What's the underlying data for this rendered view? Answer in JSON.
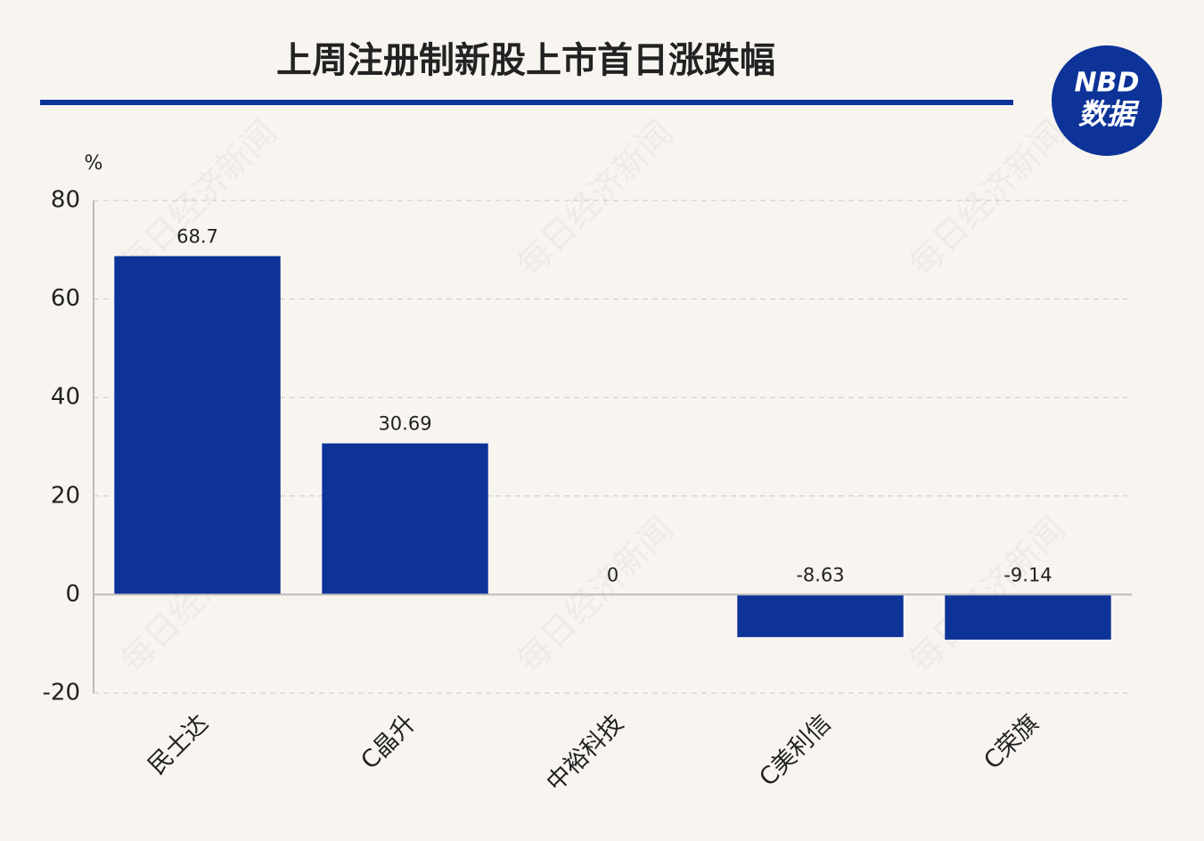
{
  "chart_data": {
    "type": "bar",
    "title": "上周注册制新股上市首日涨跌幅",
    "y_unit": "%",
    "categories": [
      "民士达",
      "C晶升",
      "中裕科技",
      "C美利信",
      "C荣旗"
    ],
    "values": [
      68.7,
      30.69,
      0,
      -8.63,
      -9.14
    ],
    "color": "#0d3399",
    "ylim": [
      -20,
      80
    ],
    "yticks": [
      -20,
      0,
      20,
      40,
      60,
      80
    ],
    "grid": true
  },
  "logo": {
    "brand": "NBD",
    "label": "数据"
  },
  "watermark": "每日经济新闻"
}
